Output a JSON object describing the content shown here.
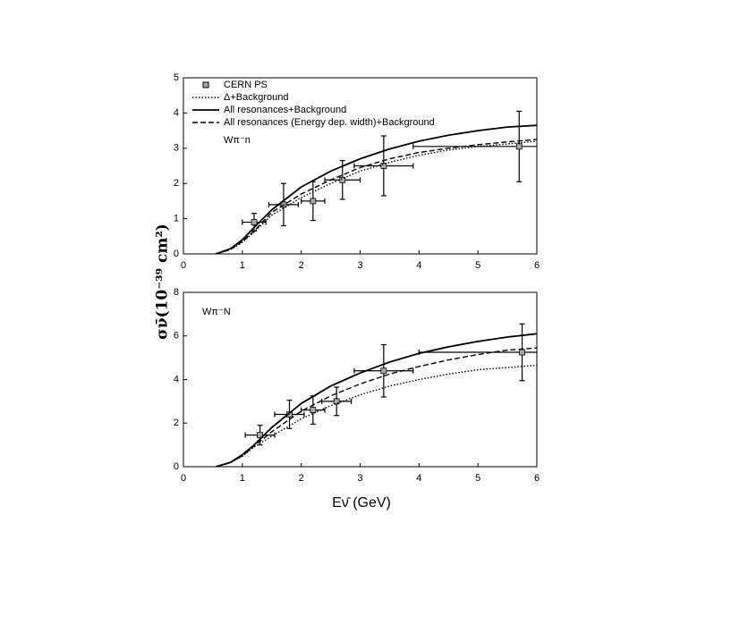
{
  "chart_data": [
    {
      "type": "line",
      "ylabel": "σν̄(10⁻³⁹ cm²)",
      "annotation": "Wπ⁻n",
      "legend": true,
      "xlim": [
        0,
        6
      ],
      "xticks": [
        0,
        1,
        2,
        3,
        4,
        5,
        6
      ],
      "ylim": [
        0,
        5
      ],
      "yticks": [
        0,
        1,
        2,
        3,
        4,
        5
      ],
      "series": [
        {
          "name": "CERN PS",
          "style": "markers",
          "color": "#000000",
          "marker_color": "#aaaaaa",
          "x": [
            1.2,
            1.7,
            2.2,
            2.7,
            3.4,
            5.7
          ],
          "values": [
            0.9,
            1.4,
            1.5,
            2.1,
            2.5,
            3.05
          ],
          "xerr": [
            0.2,
            0.25,
            0.2,
            0.3,
            0.5,
            1.8
          ],
          "yerr": [
            0.25,
            0.6,
            0.55,
            0.55,
            0.85,
            1.0
          ]
        },
        {
          "name": "Δ+Background",
          "style": "dotted",
          "color": "#000000",
          "x": [
            0.55,
            0.8,
            1,
            1.2,
            1.5,
            2,
            2.5,
            3,
            3.5,
            4,
            4.5,
            5,
            5.5,
            6
          ],
          "values": [
            0,
            0.12,
            0.33,
            0.62,
            1.1,
            1.6,
            2.0,
            2.35,
            2.6,
            2.8,
            2.95,
            3.05,
            3.12,
            3.2
          ]
        },
        {
          "name": "All resonances+Background",
          "style": "solid",
          "color": "#000000",
          "x": [
            0.55,
            0.8,
            1,
            1.2,
            1.5,
            2,
            2.5,
            3,
            3.5,
            4,
            4.5,
            5,
            5.5,
            6
          ],
          "values": [
            0,
            0.15,
            0.4,
            0.75,
            1.25,
            1.9,
            2.35,
            2.7,
            2.98,
            3.2,
            3.37,
            3.5,
            3.6,
            3.65
          ]
        },
        {
          "name": "All resonances (Energy dep. width)+Background",
          "style": "dashed",
          "color": "#000000",
          "x": [
            0.55,
            0.8,
            1,
            1.2,
            1.5,
            2,
            2.5,
            3,
            3.5,
            4,
            4.5,
            5,
            5.5,
            6
          ],
          "values": [
            0,
            0.13,
            0.35,
            0.65,
            1.18,
            1.7,
            2.1,
            2.45,
            2.7,
            2.88,
            3.0,
            3.1,
            3.18,
            3.25
          ]
        }
      ]
    },
    {
      "type": "line",
      "xlabel": "Eν̄ (GeV)",
      "annotation": "Wπ⁻N",
      "legend": false,
      "xlim": [
        0,
        6
      ],
      "xticks": [
        0,
        1,
        2,
        3,
        4,
        5,
        6
      ],
      "ylim": [
        0,
        8
      ],
      "yticks": [
        0,
        2,
        4,
        6,
        8
      ],
      "series": [
        {
          "style": "markers",
          "color": "#000000",
          "marker_color": "#aaaaaa",
          "x": [
            1.3,
            1.8,
            2.2,
            2.6,
            3.4,
            5.75
          ],
          "values": [
            1.45,
            2.4,
            2.6,
            3.0,
            4.4,
            5.25
          ],
          "xerr": [
            0.25,
            0.25,
            0.2,
            0.25,
            0.5,
            1.75
          ],
          "yerr": [
            0.45,
            0.65,
            0.65,
            0.65,
            1.2,
            1.3
          ]
        },
        {
          "style": "dotted",
          "color": "#000000",
          "x": [
            0.55,
            0.8,
            1,
            1.2,
            1.5,
            2,
            2.5,
            3,
            3.5,
            4,
            4.5,
            5,
            5.5,
            6
          ],
          "values": [
            0,
            0.18,
            0.48,
            0.9,
            1.4,
            2.2,
            2.8,
            3.3,
            3.7,
            4.0,
            4.25,
            4.45,
            4.55,
            4.65
          ]
        },
        {
          "style": "solid",
          "color": "#000000",
          "x": [
            0.55,
            0.8,
            1,
            1.2,
            1.5,
            2,
            2.5,
            3,
            3.5,
            4,
            4.5,
            5,
            5.5,
            6
          ],
          "values": [
            0,
            0.2,
            0.55,
            1.0,
            1.8,
            2.9,
            3.7,
            4.3,
            4.8,
            5.2,
            5.5,
            5.75,
            5.95,
            6.1
          ]
        },
        {
          "style": "dashed",
          "color": "#000000",
          "x": [
            0.55,
            0.8,
            1,
            1.2,
            1.5,
            2,
            2.5,
            3,
            3.5,
            4,
            4.5,
            5,
            5.5,
            6
          ],
          "values": [
            0,
            0.2,
            0.5,
            0.95,
            1.6,
            2.55,
            3.25,
            3.8,
            4.25,
            4.6,
            4.9,
            5.15,
            5.35,
            5.45
          ]
        }
      ]
    }
  ]
}
